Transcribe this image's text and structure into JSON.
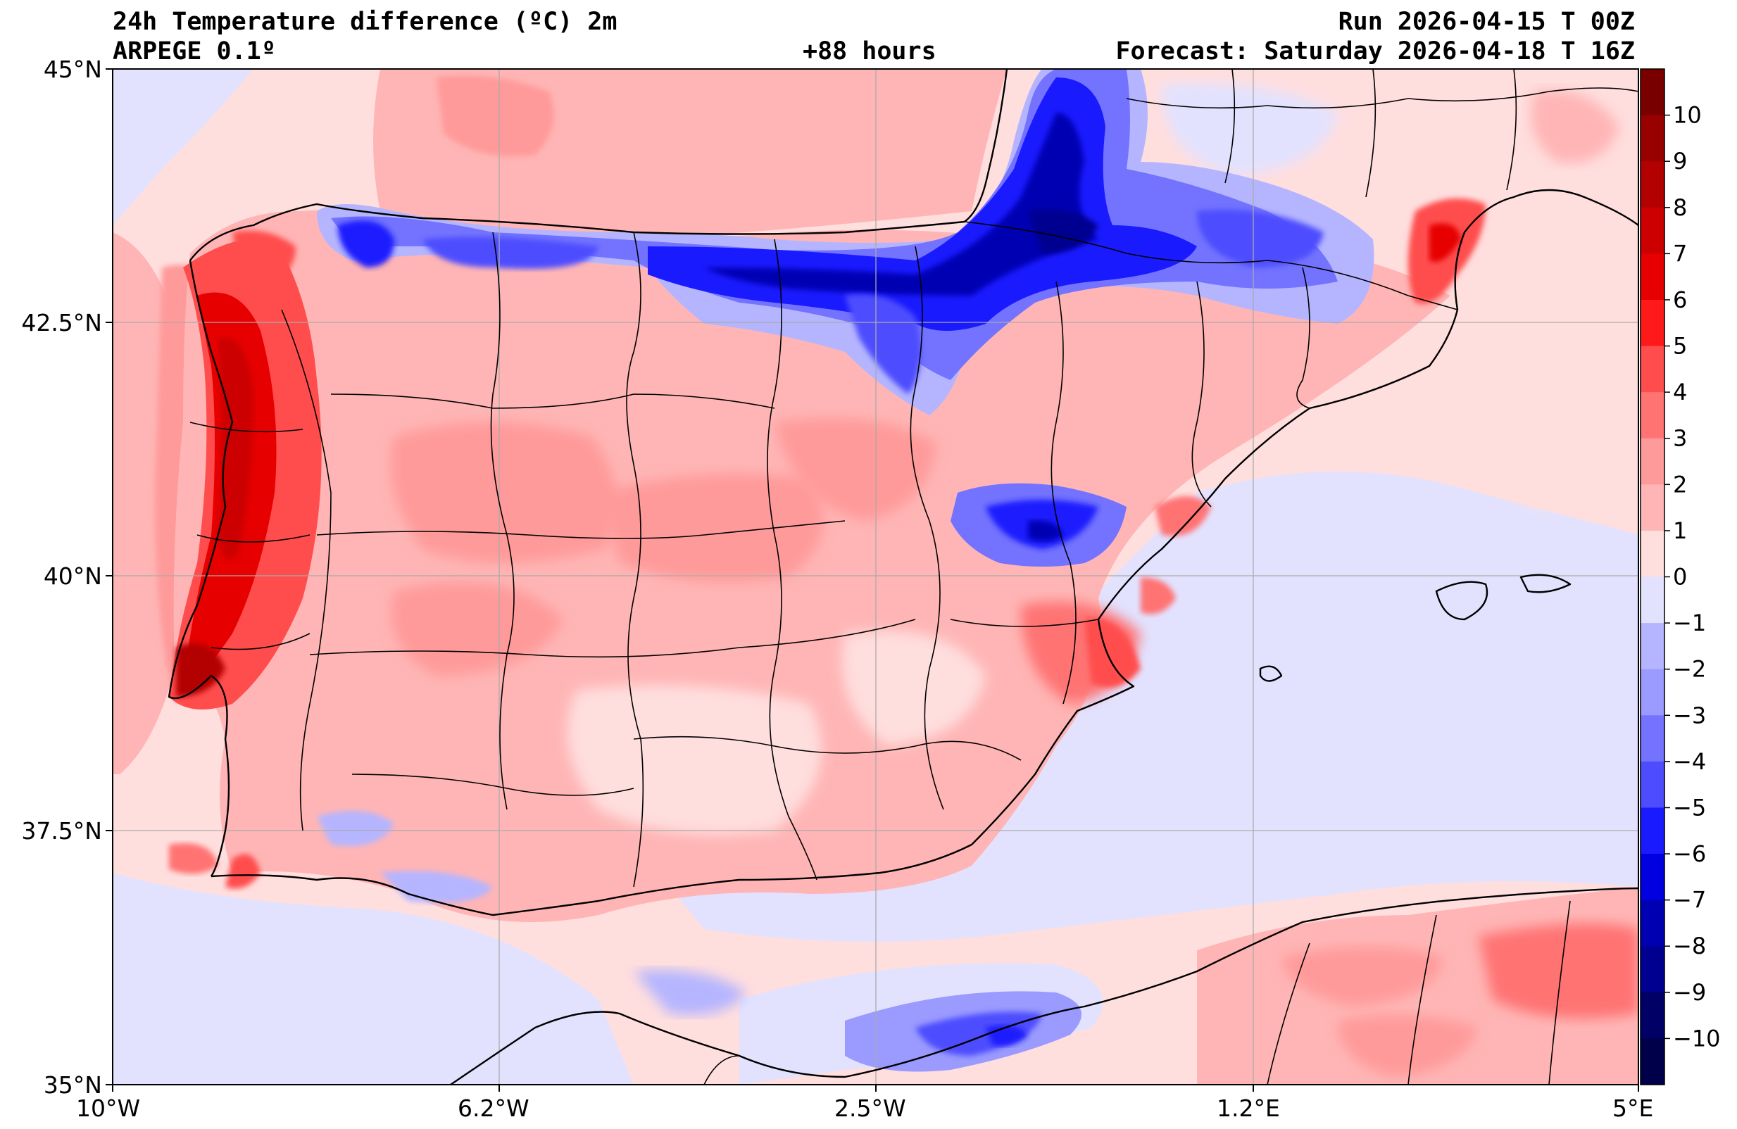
{
  "header": {
    "title_left": "24h Temperature difference (ºC) 2m",
    "model": "ARPEGE 0.1º",
    "lead_time": "+88 hours",
    "run": "Run 2026-04-15 T 00Z",
    "forecast": "Forecast: Saturday 2026-04-18 T 16Z"
  },
  "axes": {
    "lat_labels": [
      "45°N",
      "42.5°N",
      "40°N",
      "37.5°N",
      "35°N"
    ],
    "lon_labels": [
      "10°W",
      "6.2°W",
      "2.5°W",
      "1.2°E",
      "5°E"
    ]
  },
  "colorbar": {
    "labels": [
      "10",
      "9",
      "8",
      "7",
      "6",
      "5",
      "4",
      "3",
      "2",
      "1",
      "0",
      "−1",
      "−2",
      "−3",
      "−4",
      "−5",
      "−6",
      "−7",
      "−8",
      "−9",
      "−10"
    ],
    "colors": [
      "#7a0000",
      "#990000",
      "#b30000",
      "#cc0000",
      "#e60000",
      "#ff1a1a",
      "#ff4d4d",
      "#ff7373",
      "#ff9a9a",
      "#ffb5b5",
      "#ffdede",
      "#e2e2ff",
      "#b5b5ff",
      "#9a9aff",
      "#7373ff",
      "#4d4dff",
      "#1a1aff",
      "#0000e0",
      "#0000b3",
      "#000090",
      "#000066",
      "#00004a"
    ]
  }
}
